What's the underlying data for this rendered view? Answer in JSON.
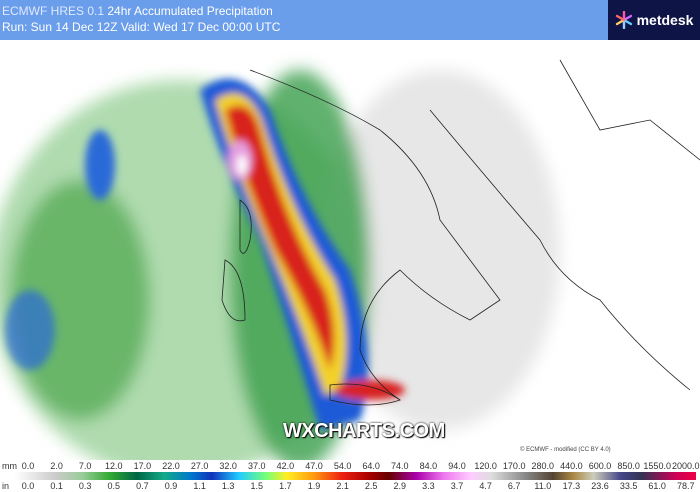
{
  "header": {
    "model": "ECMWF HRES 0.1",
    "product": "24hr Accumulated Precipitation",
    "run_line": "Run: Sun 14 Dec 12Z Valid: Wed 17 Dec 00:00 UTC"
  },
  "brand": {
    "name": "metdesk",
    "bg": "#0e1445"
  },
  "watermark": "WXCHARTS.COM",
  "credit": "© ECMWF - modified (CC BY 4.0)",
  "legend": {
    "mm_unit": "mm",
    "mm": [
      "0.0",
      "2.0",
      "7.0",
      "12.0",
      "17.0",
      "22.0",
      "27.0",
      "32.0",
      "37.0",
      "42.0",
      "47.0",
      "54.0",
      "64.0",
      "74.0",
      "84.0",
      "94.0",
      "120.0",
      "170.0",
      "280.0",
      "440.0",
      "600.0",
      "850.0",
      "1550.0",
      "2000.0"
    ],
    "in_unit": "in",
    "in": [
      "0.0",
      "0.1",
      "0.3",
      "0.5",
      "0.7",
      "0.9",
      "1.1",
      "1.3",
      "1.5",
      "1.7",
      "1.9",
      "2.1",
      "2.5",
      "2.9",
      "3.3",
      "3.7",
      "4.7",
      "6.7",
      "11.0",
      "17.3",
      "23.6",
      "33.5",
      "61.0",
      "78.7"
    ]
  }
}
